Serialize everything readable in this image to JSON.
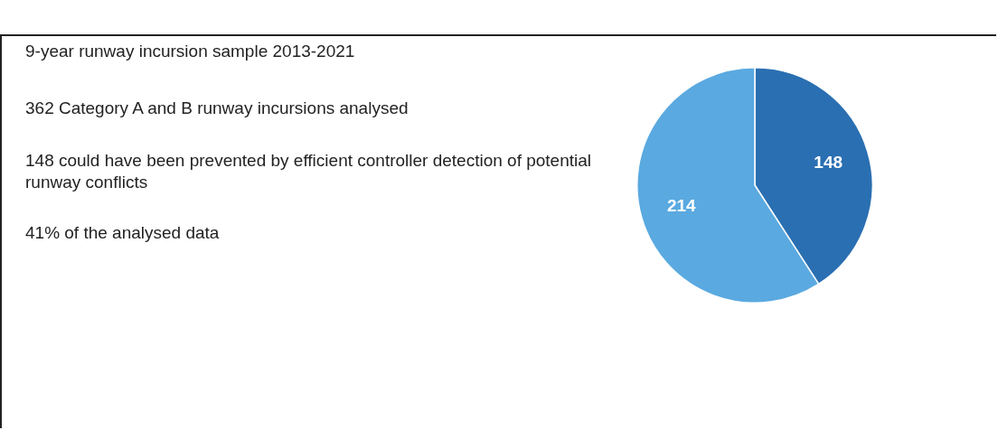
{
  "chart_data": {
    "type": "pie",
    "categories": [
      null,
      null
    ],
    "values": [
      148,
      214
    ],
    "colors": [
      "#2a6fb2",
      "#5aa9e0"
    ],
    "data_labels": true,
    "annotations": [
      "9-year runway incursion sample 2013-2021",
      "362 Category A and B runway incursions analysed",
      "148 could have been prevented by efficient controller detection of potential runway conflicts",
      "41% of the analysed data"
    ]
  }
}
